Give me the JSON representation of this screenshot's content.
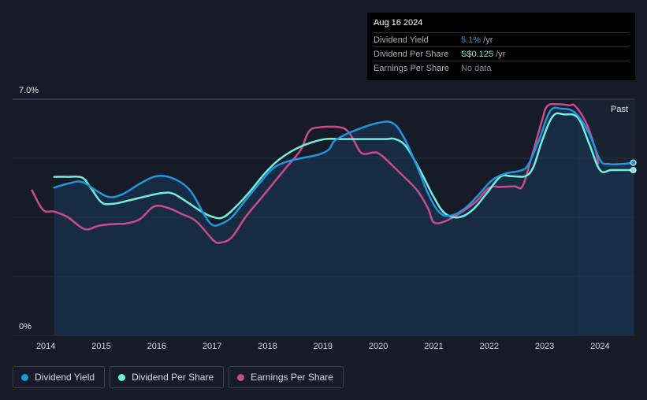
{
  "tooltip": {
    "date": "Aug 16 2024",
    "rows": [
      {
        "label": "Dividend Yield",
        "value": "5.1%",
        "unit": " /yr",
        "color": "#2394df"
      },
      {
        "label": "Dividend Per Share",
        "value": "S$0.125",
        "unit": " /yr",
        "color": "#6ff0de"
      },
      {
        "label": "Earnings Per Share",
        "value": "No data",
        "unit": "",
        "color": "#7a7f89"
      }
    ]
  },
  "chart_data": {
    "type": "line",
    "ylabel_top": "7.0%",
    "ylabel_bottom": "0%",
    "ylim": [
      0,
      7.0
    ],
    "xlim": [
      2013.4,
      2024.62
    ],
    "x_ticks": [
      "2014",
      "2015",
      "2016",
      "2017",
      "2018",
      "2019",
      "2020",
      "2021",
      "2022",
      "2023",
      "2024"
    ],
    "past_label": "Past",
    "past_start": 2023.6,
    "series": [
      {
        "name": "Dividend Yield",
        "color": "#2394df",
        "x": [
          2014.15,
          2014.4,
          2014.65,
          2014.9,
          2015.15,
          2015.4,
          2015.7,
          2016.0,
          2016.3,
          2016.6,
          2016.85,
          2017.0,
          2017.15,
          2017.35,
          2017.6,
          2017.85,
          2018.1,
          2018.35,
          2018.6,
          2018.9,
          2019.1,
          2019.2,
          2019.4,
          2019.7,
          2020.0,
          2020.25,
          2020.45,
          2020.7,
          2020.9,
          2021.1,
          2021.3,
          2021.55,
          2021.8,
          2022.05,
          2022.3,
          2022.55,
          2022.7,
          2022.9,
          2023.1,
          2023.3,
          2023.55,
          2023.8,
          2024.0,
          2024.15,
          2024.4,
          2024.6
        ],
        "values": [
          4.38,
          4.5,
          4.55,
          4.3,
          4.1,
          4.2,
          4.5,
          4.72,
          4.65,
          4.3,
          3.6,
          3.28,
          3.3,
          3.5,
          4.0,
          4.5,
          4.95,
          5.15,
          5.25,
          5.35,
          5.5,
          5.75,
          5.95,
          6.15,
          6.3,
          6.3,
          5.9,
          5.0,
          4.2,
          3.65,
          3.55,
          3.75,
          4.15,
          4.6,
          4.8,
          4.88,
          5.05,
          5.8,
          6.65,
          6.72,
          6.6,
          6.0,
          5.2,
          5.08,
          5.08,
          5.12
        ]
      },
      {
        "name": "Dividend Per Share",
        "color": "#6ff0de",
        "x": [
          2014.15,
          2014.4,
          2014.65,
          2014.8,
          2015.0,
          2015.2,
          2015.5,
          2015.8,
          2016.1,
          2016.3,
          2016.55,
          2016.8,
          2017.0,
          2017.2,
          2017.45,
          2017.7,
          2017.95,
          2018.2,
          2018.5,
          2018.8,
          2019.05,
          2019.3,
          2019.6,
          2019.9,
          2020.15,
          2020.3,
          2020.5,
          2020.75,
          2021.0,
          2021.2,
          2021.45,
          2021.7,
          2021.95,
          2022.2,
          2022.4,
          2022.65,
          2022.8,
          2022.95,
          2023.15,
          2023.35,
          2023.6,
          2023.8,
          2024.0,
          2024.2,
          2024.45,
          2024.6
        ],
        "values": [
          4.7,
          4.7,
          4.68,
          4.4,
          3.95,
          3.9,
          4.0,
          4.12,
          4.22,
          4.2,
          3.95,
          3.68,
          3.52,
          3.5,
          3.85,
          4.3,
          4.8,
          5.2,
          5.52,
          5.72,
          5.82,
          5.82,
          5.82,
          5.82,
          5.82,
          5.82,
          5.6,
          4.9,
          4.1,
          3.62,
          3.5,
          3.72,
          4.2,
          4.7,
          4.72,
          4.72,
          5.0,
          5.75,
          6.5,
          6.55,
          6.45,
          5.7,
          4.9,
          4.9,
          4.9,
          4.9
        ]
      },
      {
        "name": "Earnings Per Share",
        "color": "#cc4a8e",
        "x": [
          2013.75,
          2013.95,
          2014.15,
          2014.4,
          2014.7,
          2014.95,
          2015.2,
          2015.45,
          2015.7,
          2015.95,
          2016.2,
          2016.45,
          2016.7,
          2016.95,
          2017.05,
          2017.15,
          2017.35,
          2017.6,
          2017.85,
          2018.1,
          2018.35,
          2018.6,
          2018.75,
          2018.95,
          2019.3,
          2019.45,
          2019.55,
          2019.7,
          2019.9,
          2020.0,
          2020.15,
          2020.4,
          2020.7,
          2020.9,
          2021.0,
          2021.2,
          2021.45,
          2021.75,
          2022.0,
          2022.2,
          2022.45,
          2022.6,
          2022.75,
          2022.95,
          2023.05,
          2023.25,
          2023.45,
          2023.55,
          2023.75,
          2023.9,
          2023.97
        ],
        "values": [
          4.3,
          3.72,
          3.67,
          3.5,
          3.15,
          3.25,
          3.3,
          3.32,
          3.45,
          3.82,
          3.78,
          3.6,
          3.4,
          2.95,
          2.78,
          2.75,
          2.9,
          3.5,
          4.0,
          4.5,
          5.0,
          5.5,
          6.05,
          6.17,
          6.17,
          6.05,
          5.8,
          5.4,
          5.42,
          5.4,
          5.2,
          4.8,
          4.3,
          3.75,
          3.35,
          3.38,
          3.6,
          3.95,
          4.38,
          4.4,
          4.42,
          4.42,
          5.2,
          6.35,
          6.8,
          6.85,
          6.82,
          6.8,
          6.3,
          5.6,
          5.1
        ]
      }
    ],
    "legend": [
      "Dividend Yield",
      "Dividend Per Share",
      "Earnings Per Share"
    ]
  }
}
